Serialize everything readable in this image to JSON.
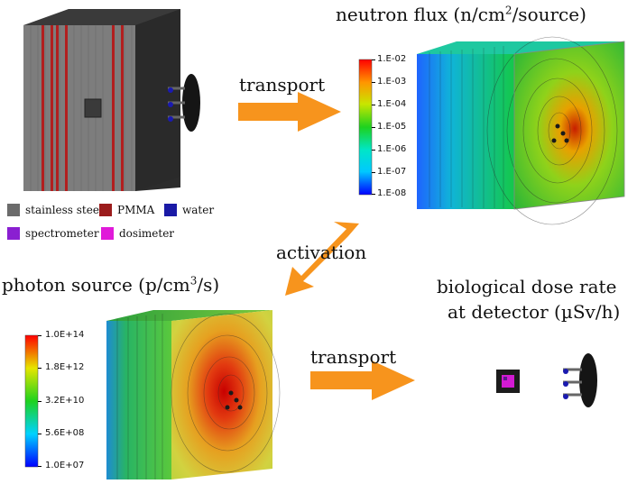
{
  "panels": {
    "neutron_flux": {
      "title_main": "neutron flux (n/cm",
      "title_sup": "2",
      "title_end": "/source)",
      "colorbar_ticks": [
        "1.E-02",
        "1.E-03",
        "1.E-04",
        "1.E-05",
        "1.E-06",
        "1.E-07",
        "1.E-08"
      ]
    },
    "photon_source": {
      "title_main": "photon source (p/cm",
      "title_sup": "3",
      "title_end": "/s)",
      "colorbar_ticks": [
        "1.0E+14",
        "1.8E+12",
        "3.2E+10",
        "5.6E+08",
        "1.0E+07"
      ]
    },
    "dose_rate": {
      "title_line1": "biological dose rate",
      "title_line2": "at detector (µSv/h)"
    }
  },
  "arrows": {
    "transport_top": "transport",
    "activation": "activation",
    "transport_bottom": "transport"
  },
  "legend": [
    {
      "label": "stainless steel",
      "color": "#6b6b6b"
    },
    {
      "label": "PMMA",
      "color": "#9b1c1c"
    },
    {
      "label": "water",
      "color": "#1a1aa6"
    },
    {
      "label": "spectrometer",
      "color": "#8a1fd1"
    },
    {
      "label": "dosimeter",
      "color": "#e01ad9"
    }
  ],
  "colors": {
    "arrow": "#f7941d",
    "steel_front": "#7a7a7a",
    "steel_side": "#2a2a2a",
    "pmma": "#b21f1f"
  }
}
